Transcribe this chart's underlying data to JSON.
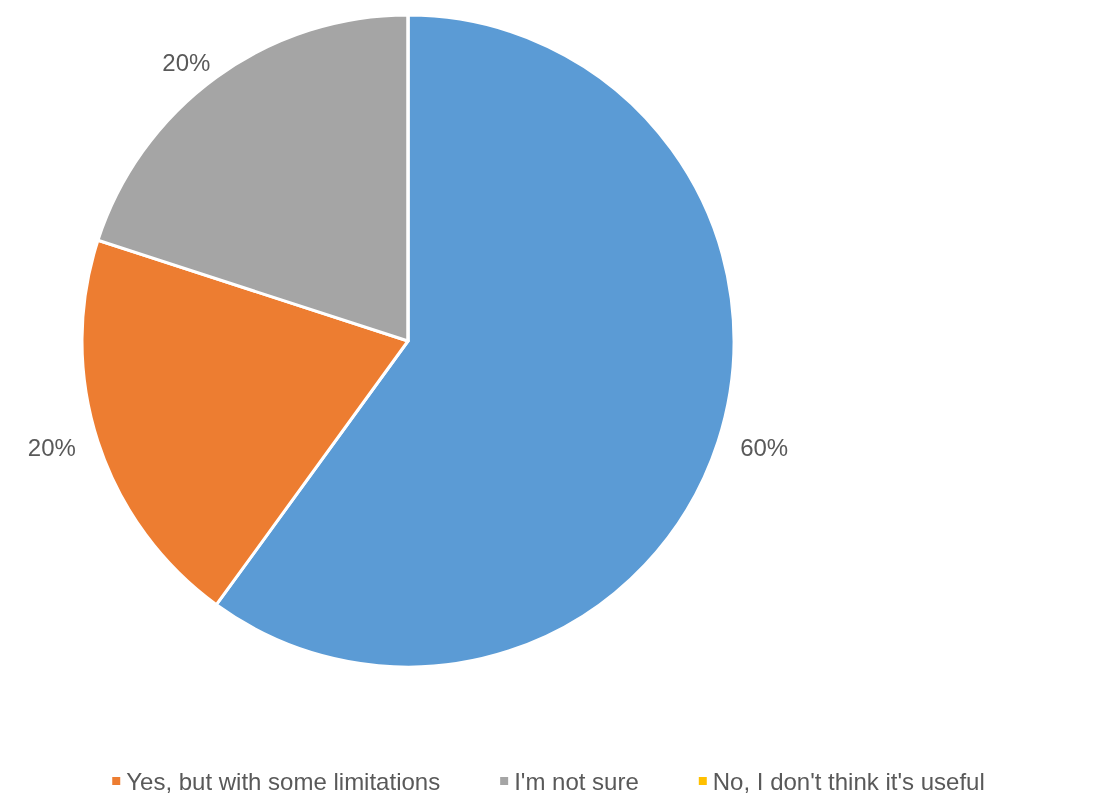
{
  "chart_data": {
    "type": "pie",
    "categories": [
      null,
      "Yes, but with some limitations",
      "I'm not sure",
      "No, I don't think it's useful"
    ],
    "values": [
      60,
      20,
      20,
      0
    ],
    "colors": [
      "#5b9bd5",
      "#ed7d31",
      "#a5a5a5",
      "#ffc000"
    ],
    "value_labels": [
      "60%",
      "20%",
      "20%",
      null
    ],
    "legend": "bottom"
  }
}
